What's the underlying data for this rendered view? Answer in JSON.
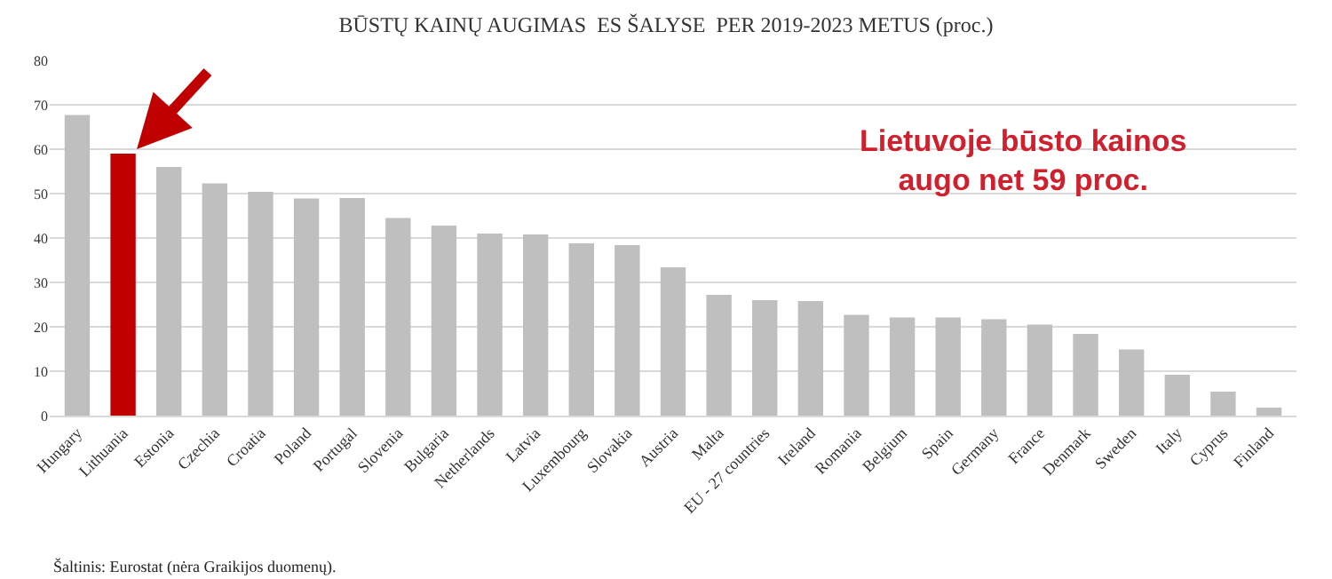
{
  "chart_data": {
    "type": "bar",
    "title": "BŪSTŲ KAINŲ AUGIMAS  ES ŠALYSE  PER 2019-2023 METUS (proc.)",
    "categories": [
      "Hungary",
      "Lithuania",
      "Estonia",
      "Czechia",
      "Croatia",
      "Poland",
      "Portugal",
      "Slovenia",
      "Bulgaria",
      "Netherlands",
      "Latvia",
      "Luxembourg",
      "Slovakia",
      "Austria",
      "Malta",
      "EU - 27 countries",
      "Ireland",
      "Romania",
      "Belgium",
      "Spain",
      "Germany",
      "France",
      "Denmark",
      "Sweden",
      "Italy",
      "Cyprus",
      "Finland"
    ],
    "values": [
      67.7,
      59,
      56,
      52.3,
      50.4,
      48.9,
      49,
      44.5,
      42.8,
      41,
      40.8,
      38.8,
      38.4,
      33.4,
      27.2,
      26,
      25.8,
      22.7,
      22.1,
      22.1,
      21.7,
      20.5,
      18.4,
      14.9,
      9.2,
      5.4,
      1.8
    ],
    "colors": [
      "#bfbfbf",
      "#c00000",
      "#bfbfbf",
      "#bfbfbf",
      "#bfbfbf",
      "#bfbfbf",
      "#bfbfbf",
      "#bfbfbf",
      "#bfbfbf",
      "#bfbfbf",
      "#bfbfbf",
      "#bfbfbf",
      "#bfbfbf",
      "#bfbfbf",
      "#bfbfbf",
      "#bfbfbf",
      "#bfbfbf",
      "#bfbfbf",
      "#bfbfbf",
      "#bfbfbf",
      "#bfbfbf",
      "#bfbfbf",
      "#bfbfbf",
      "#bfbfbf",
      "#bfbfbf",
      "#bfbfbf",
      "#bfbfbf"
    ],
    "ylim": [
      0,
      80
    ],
    "yticks": [
      0,
      10,
      20,
      30,
      40,
      50,
      60,
      70,
      80
    ],
    "grid": "y",
    "annotations": [
      "Lietuvoje būsto kainos\naugo net 59 proc.",
      "Šaltinis: Eurostat (nėra Graikijos duomenų)."
    ]
  }
}
